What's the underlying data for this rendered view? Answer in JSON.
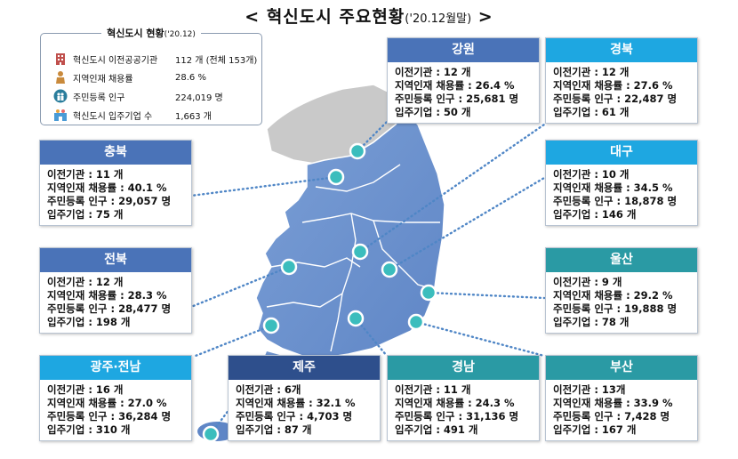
{
  "title": {
    "main": "< 혁신도시 주요현황",
    "sub": "('20.12월말)",
    "close": " >"
  },
  "summary": {
    "header": "혁신도시 현황",
    "header_date": "('20.12)",
    "rows": [
      {
        "icon": "building-icon",
        "label": "혁신도시  이전공공기관",
        "value": "112 개 (전체 153개)"
      },
      {
        "icon": "person-icon",
        "label": "지역인재 채용률",
        "value": "28.6 %"
      },
      {
        "icon": "family-icon",
        "label": "주민등록 인구",
        "value": "224,019 명"
      },
      {
        "icon": "company-icon",
        "label": "혁신도시 입주기업 수",
        "value": "1,663 개"
      }
    ]
  },
  "regions": [
    {
      "key": "gangwon",
      "name": "강원",
      "color": "#4a73b8",
      "lines": [
        "이전기관 : 12 개",
        "지역인재 채용률 : 26.4 %",
        "주민등록 인구 : 25,681 명",
        "입주기업 : 50 개"
      ]
    },
    {
      "key": "gyeongbuk",
      "name": "경북",
      "color": "#1ea7e1",
      "lines": [
        "이전기관 : 12 개",
        "지역인재 채용률 :  27.6 %",
        "주민등록 인구 : 22,487 명",
        "입주기업 : 61 개"
      ]
    },
    {
      "key": "chungbuk",
      "name": "충북",
      "color": "#4a73b8",
      "lines": [
        "이전기관 : 11 개",
        "지역인재 채용률 : 40.1 %",
        "주민등록 인구 : 29,057 명",
        "입주기업 : 75 개"
      ]
    },
    {
      "key": "daegu",
      "name": "대구",
      "color": "#1ea7e1",
      "lines": [
        "이전기관 : 10 개",
        "지역인재 채용률 : 34.5 %",
        "주민등록 인구 : 18,878 명",
        "입주기업 : 146 개"
      ]
    },
    {
      "key": "jeonbuk",
      "name": "전북",
      "color": "#4a73b8",
      "lines": [
        "이전기관 : 12 개",
        "지역인재 채용률 : 28.3 %",
        "주민등록 인구 : 28,477 명",
        "입주기업 : 198 개"
      ]
    },
    {
      "key": "ulsan",
      "name": "울산",
      "color": "#2a9aa4",
      "lines": [
        "이전기관 : 9 개",
        "지역인재 채용률 : 29.2 %",
        "주민등록 인구 : 19,888 명",
        "입주기업 : 78 개"
      ]
    },
    {
      "key": "gwangju",
      "name": "광주·전남",
      "color": "#1ea7e1",
      "lines": [
        "이전기관 : 16 개",
        "지역인재 채용률 : 27.0 %",
        "주민등록 인구 : 36,284 명",
        "입주기업 : 310 개"
      ]
    },
    {
      "key": "jeju",
      "name": "제주",
      "color": "#2e4f8c",
      "lines": [
        "이전기관 : 6개",
        "지역인재 채용률 : 32.1 %",
        "주민등록 인구 : 4,703 명",
        "입주기업 : 87 개"
      ]
    },
    {
      "key": "gyeongnam",
      "name": "경남",
      "color": "#2a9aa4",
      "lines": [
        "이전기관 : 11 개",
        "지역인재 채용률 : 24.3 %",
        "주민등록 인구 : 31,136 명",
        "입주기업 : 491 개"
      ]
    },
    {
      "key": "busan",
      "name": "부산",
      "color": "#2a9aa4",
      "lines": [
        "이전기관 : 13개",
        "지역인재 채용률 : 33.9 %",
        "주민등록 인구 : 7,428 명",
        "입주기업 : 167 개"
      ]
    }
  ]
}
